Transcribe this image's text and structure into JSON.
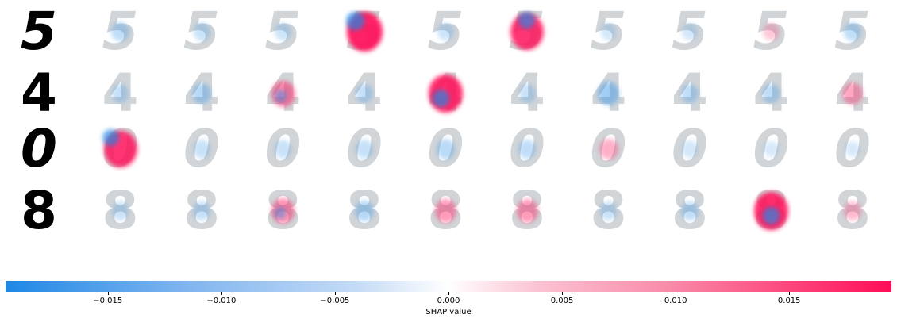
{
  "chart_data": {
    "type": "heatmap",
    "title": "",
    "digits": [
      "5",
      "4",
      "0",
      "8"
    ],
    "output_columns": 10,
    "colorbar": {
      "label": "SHAP value",
      "ticks": [
        -0.015,
        -0.01,
        -0.005,
        0.0,
        0.005,
        0.01,
        0.015
      ],
      "tick_labels": [
        "−0.015",
        "−0.010",
        "−0.005",
        "0.000",
        "0.005",
        "0.010",
        "0.015"
      ],
      "vmin": -0.0195,
      "vmax": 0.0195,
      "negative_color": "#1e88e5",
      "positive_color": "#ff0d57"
    },
    "rows": [
      {
        "digit": "5",
        "strength": [
          0.15,
          0.1,
          0.08,
          0.9,
          0.08,
          0.8,
          0.05,
          0.05,
          0.08,
          0.15
        ],
        "sign": [
          -1,
          -1,
          -1,
          1,
          -1,
          1,
          -1,
          -1,
          1,
          -1
        ]
      },
      {
        "digit": "4",
        "strength": [
          0.12,
          0.2,
          0.4,
          0.12,
          0.85,
          0.1,
          0.3,
          0.15,
          0.15,
          0.25
        ],
        "sign": [
          -1,
          -1,
          1,
          -1,
          1,
          -1,
          -1,
          -1,
          -1,
          1
        ]
      },
      {
        "digit": "0",
        "strength": [
          0.8,
          0.1,
          0.1,
          0.12,
          0.18,
          0.15,
          0.2,
          0.05,
          0.03,
          0.03
        ],
        "sign": [
          1,
          -1,
          -1,
          -1,
          -1,
          -1,
          1,
          -1,
          -1,
          -1
        ]
      },
      {
        "digit": "8",
        "strength": [
          0.1,
          0.12,
          0.35,
          0.2,
          0.3,
          0.3,
          0.1,
          0.15,
          0.85,
          0.15
        ],
        "sign": [
          -1,
          -1,
          1,
          -1,
          1,
          1,
          -1,
          -1,
          1,
          1
        ]
      }
    ]
  }
}
